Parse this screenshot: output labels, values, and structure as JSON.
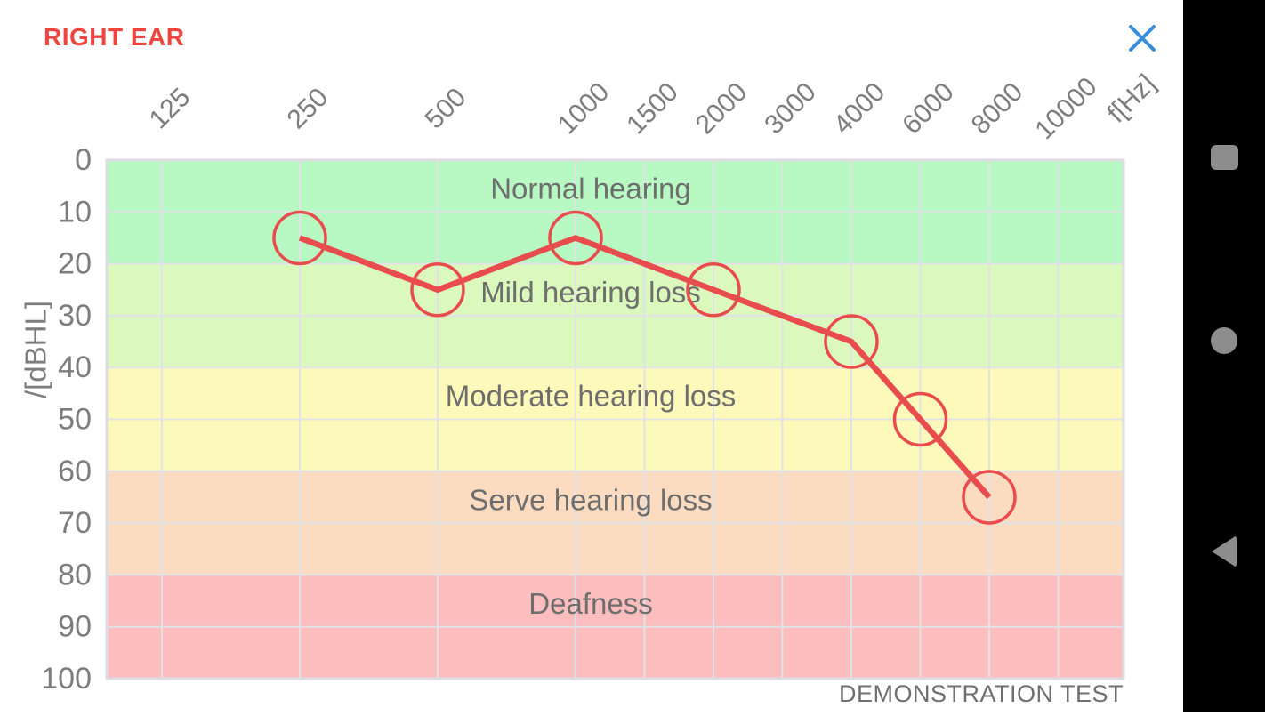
{
  "header": {
    "title": "RIGHT EAR",
    "close_icon_name": "close-x"
  },
  "footer": {
    "note": "DEMONSTRATION TEST"
  },
  "navbar": {
    "icons": [
      {
        "name": "recents",
        "shape": "square"
      },
      {
        "name": "home",
        "shape": "circle"
      },
      {
        "name": "back",
        "shape": "left-triangle"
      }
    ]
  },
  "chart_data": {
    "type": "line",
    "title": "RIGHT EAR",
    "x_axis_label": "f[Hz]",
    "y_axis_label": "/[dBHL]",
    "x_ticks": [
      "125",
      "250",
      "500",
      "1000",
      "1500",
      "2000",
      "3000",
      "4000",
      "6000",
      "8000",
      "10000"
    ],
    "y_ticks": [
      "0",
      "10",
      "20",
      "30",
      "40",
      "50",
      "60",
      "70",
      "80",
      "90",
      "100"
    ],
    "ylim": [
      0,
      100
    ],
    "y_axis_inverted": true,
    "grid": true,
    "bands": [
      {
        "label": "Normal hearing",
        "from_db": 0,
        "to_db": 20,
        "color": "#b8f8c3"
      },
      {
        "label": "Mild hearing loss",
        "from_db": 20,
        "to_db": 40,
        "color": "#dcf9bd"
      },
      {
        "label": "Moderate hearing loss",
        "from_db": 40,
        "to_db": 60,
        "color": "#fdf9ba"
      },
      {
        "label": "Serve hearing loss",
        "from_db": 60,
        "to_db": 80,
        "color": "#fbdcc0"
      },
      {
        "label": "Deafness",
        "from_db": 80,
        "to_db": 100,
        "color": "#fbbdbd"
      }
    ],
    "series": [
      {
        "name": "right ear thresholds",
        "color": "#e84c4c",
        "marker": "circle",
        "points": [
          {
            "frequency_hz": 250,
            "threshold_db": 15
          },
          {
            "frequency_hz": 500,
            "threshold_db": 25
          },
          {
            "frequency_hz": 1000,
            "threshold_db": 15
          },
          {
            "frequency_hz": 2000,
            "threshold_db": 25
          },
          {
            "frequency_hz": 4000,
            "threshold_db": 35
          },
          {
            "frequency_hz": 6000,
            "threshold_db": 50
          },
          {
            "frequency_hz": 8000,
            "threshold_db": 65
          }
        ]
      }
    ],
    "annotation": "DEMONSTRATION TEST",
    "colors": {
      "line": "#e84c4c",
      "grid": "#e1e2e7",
      "plot_border": "#dcdde2",
      "axis_text": "#7d7d7d",
      "band_text": "#6e6e6e",
      "title": "#ee453e",
      "close_icon": "#3a8ddb"
    }
  }
}
